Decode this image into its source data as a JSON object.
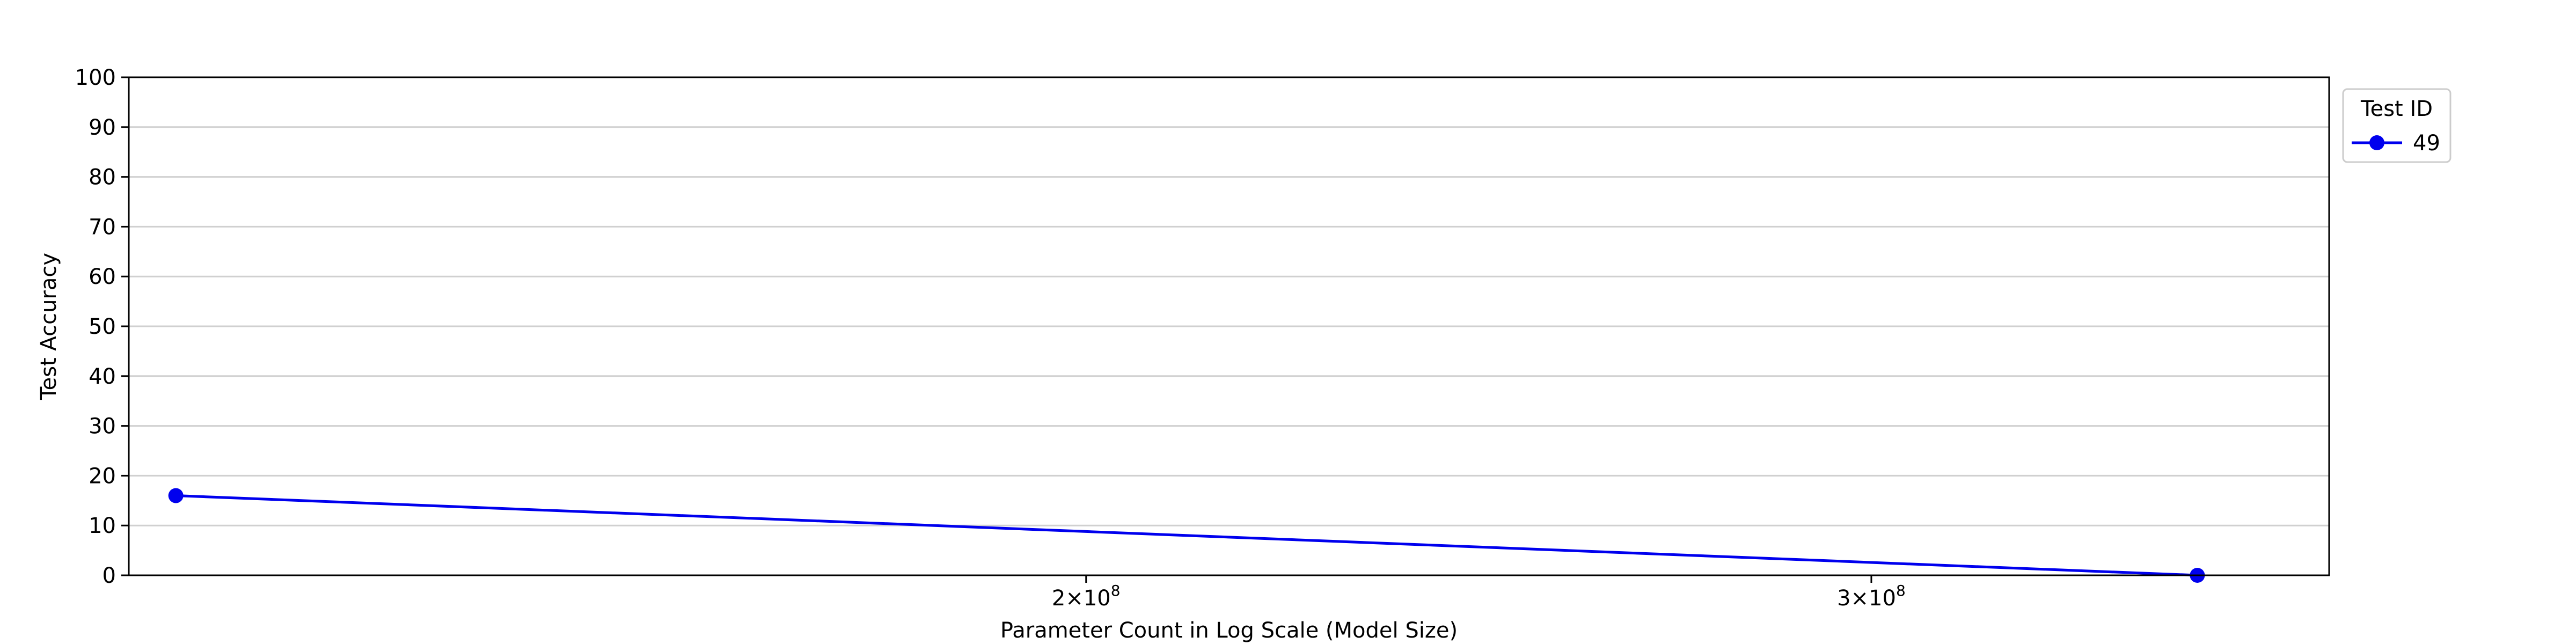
{
  "chart_data": {
    "type": "line",
    "title": "",
    "xlabel": "Parameter Count in Log Scale (Model Size)",
    "ylabel": "Test Accuracy",
    "x_scale": "log",
    "xlim": [
      122000000,
      380000000
    ],
    "ylim": [
      0,
      100
    ],
    "yticks": [
      0,
      10,
      20,
      30,
      40,
      50,
      60,
      70,
      80,
      90,
      100
    ],
    "xticks": [
      {
        "value": 200000000,
        "mantissa": "2",
        "base": "10",
        "exponent": "8"
      },
      {
        "value": 300000000,
        "mantissa": "3",
        "base": "10",
        "exponent": "8"
      }
    ],
    "grid": "horizontal",
    "legend": {
      "title": "Test ID",
      "placement": "outside top-right"
    },
    "series": [
      {
        "name": "49",
        "color": "#0000ee",
        "marker": "circle",
        "points": [
          {
            "x": 125000000,
            "y": 16
          },
          {
            "x": 355000000,
            "y": 0
          }
        ]
      }
    ]
  }
}
